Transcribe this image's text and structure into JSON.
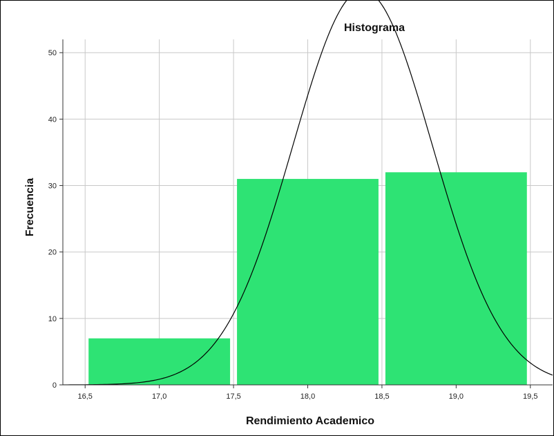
{
  "chart_data": {
    "type": "bar",
    "title": "Histograma",
    "xlabel": "Rendimiento Academico",
    "ylabel": "Frecuencia",
    "xlim": [
      16.35,
      19.65
    ],
    "ylim": [
      0,
      52
    ],
    "x_ticks": [
      16.5,
      17.0,
      17.5,
      18.0,
      18.5,
      19.0,
      19.5
    ],
    "x_tick_labels": [
      "16,5",
      "17,0",
      "17,5",
      "18,0",
      "18,5",
      "19,0",
      "19,5"
    ],
    "y_ticks": [
      0,
      10,
      20,
      30,
      40,
      50
    ],
    "y_tick_labels": [
      "0",
      "10",
      "20",
      "30",
      "40",
      "50"
    ],
    "bins": [
      {
        "from": 16.5,
        "to": 17.5,
        "value": 7
      },
      {
        "from": 17.5,
        "to": 18.5,
        "value": 31
      },
      {
        "from": 18.5,
        "to": 19.5,
        "value": 32
      }
    ],
    "normal_curve": {
      "mean": 18.37,
      "sd": 0.47,
      "n": 70,
      "bin_width": 1.0
    },
    "grid": true,
    "colors": {
      "bar": "#2ee374",
      "curve": "#000000",
      "grid": "#c8c8c8"
    }
  }
}
